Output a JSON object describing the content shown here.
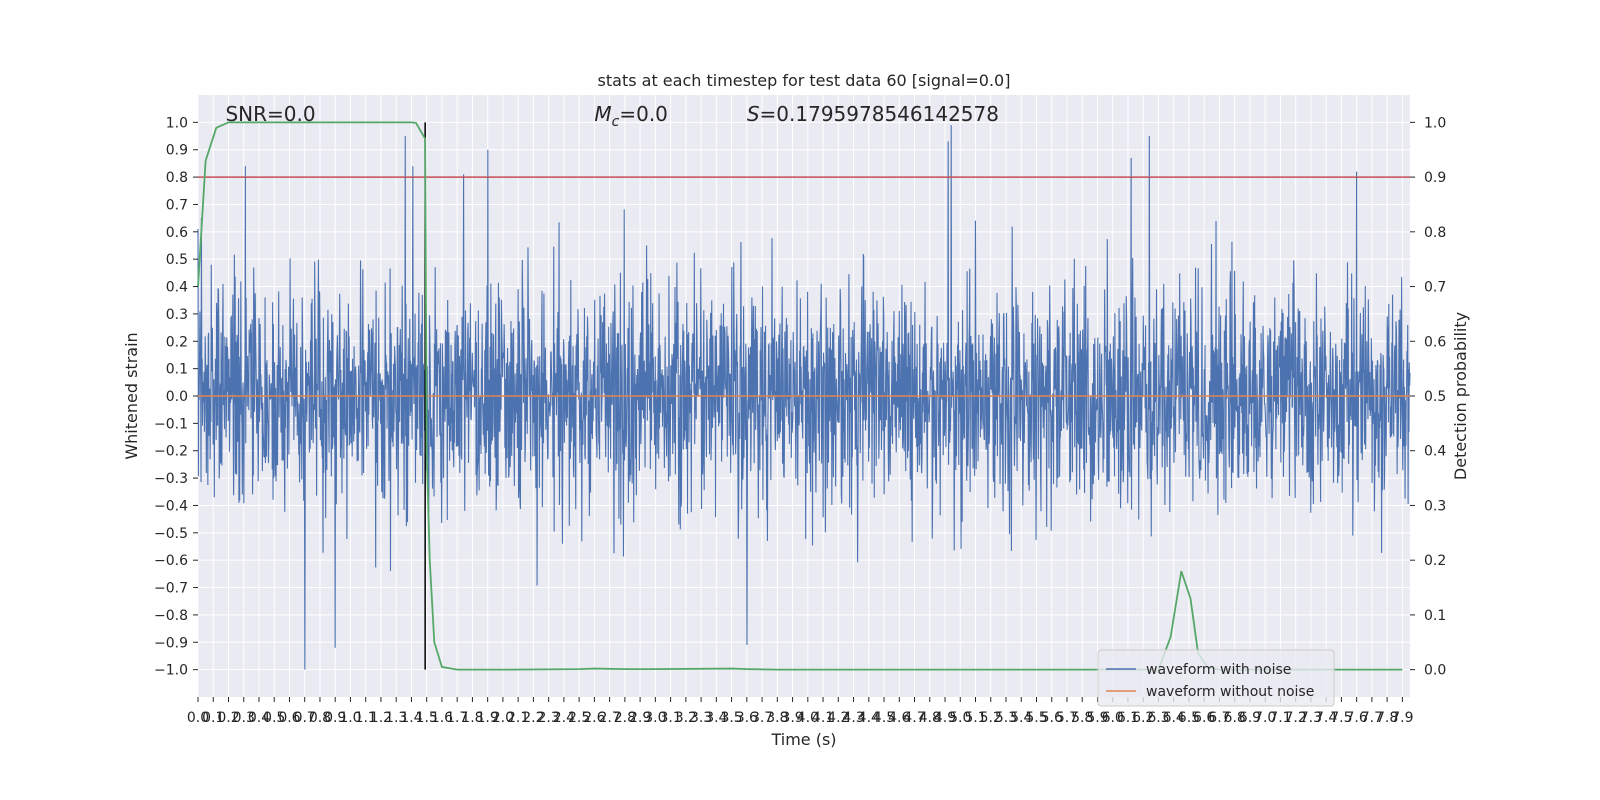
{
  "chart_data": {
    "type": "line",
    "title": "stats at each timestep for test data 60 [signal=0.0]",
    "xlabel": "Time (s)",
    "ylabel": "Whitened strain",
    "ylabel_right": "Detection probability",
    "xlim": [
      0.0,
      7.95
    ],
    "ylim": [
      -1.1,
      1.1
    ],
    "ylim_right": [
      -0.05,
      1.05
    ],
    "x_ticks": [
      0.0,
      0.1,
      0.2,
      0.3,
      0.4,
      0.5,
      0.6,
      0.7,
      0.8,
      0.9,
      1.0,
      1.1,
      1.2,
      1.3,
      1.4,
      1.5,
      1.6,
      1.7,
      1.8,
      1.9,
      2.0,
      2.1,
      2.2,
      2.3,
      2.4,
      2.5,
      2.6,
      2.7,
      2.8,
      2.9,
      3.0,
      3.1,
      3.2,
      3.3,
      3.4,
      3.5,
      3.6,
      3.7,
      3.8,
      3.9,
      4.0,
      4.1,
      4.2,
      4.3,
      4.4,
      4.5,
      4.6,
      4.7,
      4.8,
      4.9,
      5.0,
      5.1,
      5.2,
      5.3,
      5.4,
      5.5,
      5.6,
      5.7,
      5.8,
      5.9,
      6.0,
      6.1,
      6.2,
      6.3,
      6.4,
      6.5,
      6.6,
      6.7,
      6.8,
      6.9,
      7.0,
      7.1,
      7.2,
      7.3,
      7.4,
      7.5,
      7.6,
      7.7,
      7.8,
      7.9
    ],
    "x_tick_labels": [
      "0.0",
      "0.1",
      "0.2",
      "0.3",
      "0.4",
      "0.5",
      "0.6",
      "0.7",
      "0.8",
      "0.9",
      "1.0",
      "1.1",
      "1.2",
      "1.3",
      "1.4",
      "1.5",
      "1.6",
      "1.7",
      "1.8",
      "1.9",
      "2.0",
      "2.1",
      "2.2",
      "2.3",
      "2.4",
      "2.5",
      "2.6",
      "2.7",
      "2.8",
      "2.9",
      "3.0",
      "3.1",
      "3.2",
      "3.3",
      "3.4",
      "3.5",
      "3.6",
      "3.7",
      "3.8",
      "3.9",
      "4.0",
      "4.1",
      "4.2",
      "4.3",
      "4.4",
      "4.5",
      "4.6",
      "4.7",
      "4.8",
      "4.9",
      "5.0",
      "5.1",
      "5.2",
      "5.3",
      "5.4",
      "5.5",
      "5.6",
      "5.7",
      "5.8",
      "5.9",
      "6.0",
      "6.1",
      "6.2",
      "6.3",
      "6.4",
      "6.5",
      "6.6",
      "6.7",
      "6.8",
      "6.9",
      "7.0",
      "7.1",
      "7.2",
      "7.3",
      "7.4",
      "7.5",
      "7.6",
      "7.7",
      "7.8",
      "7.9"
    ],
    "y_ticks": [
      1.0,
      0.9,
      0.8,
      0.7,
      0.6,
      0.5,
      0.4,
      0.3,
      0.2,
      0.1,
      0.0,
      -0.1,
      -0.2,
      -0.3,
      -0.4,
      -0.5,
      -0.6,
      -0.7,
      -0.8,
      -0.9,
      -1.0
    ],
    "y_tick_labels": [
      "1.0",
      "0.9",
      "0.8",
      "0.7",
      "0.6",
      "0.5",
      "0.4",
      "0.3",
      "0.2",
      "0.1",
      "0.0",
      "−0.1",
      "−0.2",
      "−0.3",
      "−0.4",
      "−0.5",
      "−0.6",
      "−0.7",
      "−0.8",
      "−0.9",
      "−1.0"
    ],
    "y_ticks_right": [
      1.0,
      0.9,
      0.8,
      0.7,
      0.6,
      0.5,
      0.4,
      0.3,
      0.2,
      0.1,
      0.0
    ],
    "y_tick_labels_right": [
      "1.0",
      "0.9",
      "0.8",
      "0.7",
      "0.6",
      "0.5",
      "0.4",
      "0.3",
      "0.2",
      "0.1",
      "0.0"
    ],
    "grid": true,
    "legend": "bottom-right",
    "series": [
      {
        "name": "waveform with noise",
        "axis": "left",
        "color": "#4c72b0",
        "kind": "noise",
        "amplitude_note": "dense noise, mostly within ±0.6, peaks reaching about ±1.0",
        "peaks": [
          {
            "x": 0.31,
            "y": 0.84
          },
          {
            "x": 0.7,
            "y": -1.0
          },
          {
            "x": 0.9,
            "y": -0.92
          },
          {
            "x": 1.36,
            "y": 0.95
          },
          {
            "x": 1.41,
            "y": 0.84
          },
          {
            "x": 1.9,
            "y": 0.9
          },
          {
            "x": 3.6,
            "y": -0.91
          },
          {
            "x": 4.94,
            "y": 0.99
          },
          {
            "x": 4.92,
            "y": 0.93
          },
          {
            "x": 6.12,
            "y": 0.87
          },
          {
            "x": 6.24,
            "y": 0.95
          },
          {
            "x": 7.6,
            "y": 0.82
          }
        ]
      },
      {
        "name": "waveform without noise",
        "axis": "left",
        "color": "#dd8452",
        "x": [
          0.0,
          7.95
        ],
        "y": [
          0.0,
          0.0
        ]
      },
      {
        "name": "",
        "axis": "right",
        "color": "#55a868",
        "x": [
          0.0,
          0.05,
          0.12,
          0.2,
          0.3,
          0.5,
          0.8,
          1.0,
          1.2,
          1.4,
          1.43,
          1.49,
          1.5,
          1.52,
          1.55,
          1.6,
          1.7,
          2.0,
          2.5,
          2.6,
          2.8,
          3.0,
          3.3,
          3.5,
          3.6,
          3.8,
          4.0,
          4.5,
          5.0,
          5.5,
          6.0,
          6.3,
          6.38,
          6.45,
          6.51,
          6.56,
          6.62,
          6.7,
          6.8,
          7.0,
          7.5,
          7.9
        ],
        "y": [
          0.7,
          0.93,
          0.99,
          1.0,
          1.0,
          1.0,
          1.0,
          1.0,
          1.0,
          1.0,
          0.999,
          0.97,
          0.4,
          0.2,
          0.05,
          0.005,
          0.0,
          0.0,
          0.001,
          0.002,
          0.001,
          0.001,
          0.0015,
          0.002,
          0.001,
          0.0,
          0.0,
          0.0,
          0.0,
          0.0,
          0.0,
          0.0,
          0.06,
          0.18,
          0.13,
          0.03,
          0.005,
          0.0,
          0.0,
          0.0,
          0.0,
          0.0
        ]
      }
    ],
    "threshold_line": {
      "axis": "right",
      "y": 0.9,
      "color": "#c44e52"
    },
    "vertical_line": {
      "x": 1.49,
      "color": "#000000"
    },
    "annotations": [
      {
        "text": "SNR=0.0",
        "x": 0.18
      },
      {
        "text": "M_c=0.0",
        "x": 2.6
      },
      {
        "text": "S=0.1795978546142578",
        "x": 3.6
      }
    ]
  }
}
